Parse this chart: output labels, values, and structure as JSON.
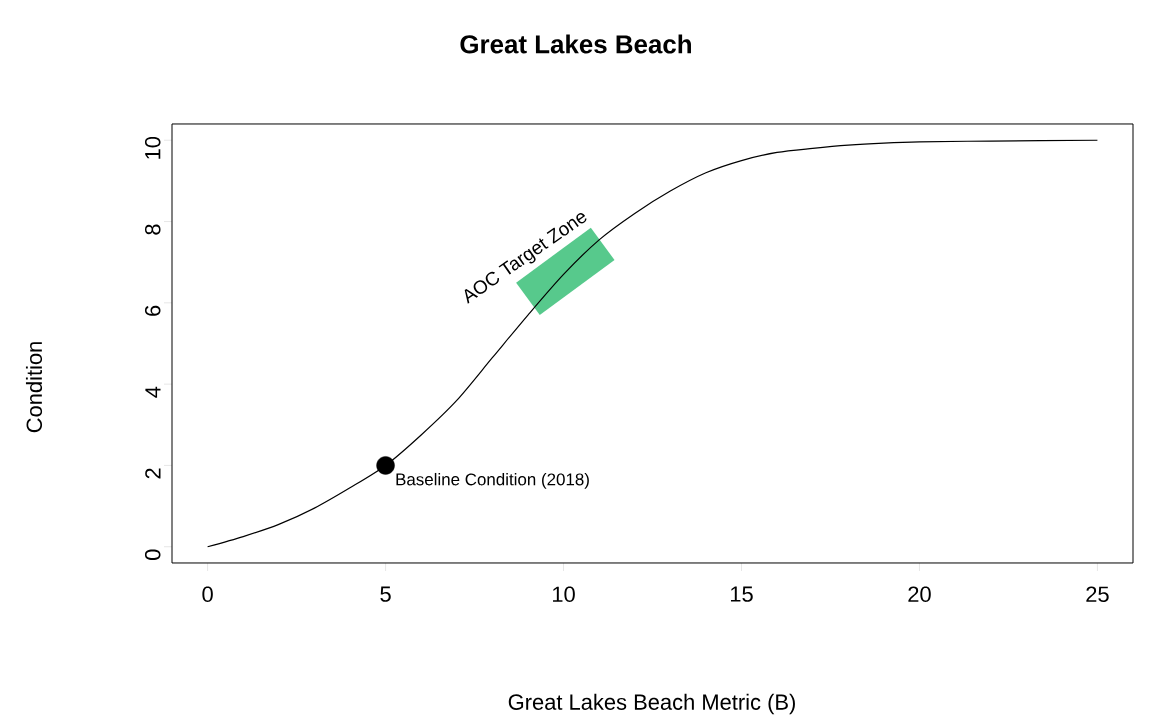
{
  "chart_data": {
    "type": "line",
    "title": "Great Lakes Beach",
    "xlabel": "Great Lakes Beach Metric (B)",
    "ylabel": "Condition",
    "xlim": [
      -1,
      26
    ],
    "ylim": [
      -0.4,
      10.4
    ],
    "xticks": [
      0,
      5,
      10,
      15,
      20,
      25
    ],
    "yticks": [
      0,
      2,
      4,
      6,
      8,
      10
    ],
    "grid": false,
    "series": [
      {
        "color": "#57c98c",
        "x": [
          9.0,
          11.1
        ],
        "values": [
          6.1,
          7.45
        ]
      },
      {
        "color": "#000000",
        "marker": "none",
        "x": [
          0,
          1,
          2,
          3,
          4,
          5,
          6,
          7,
          8,
          9,
          10,
          11,
          12,
          13,
          14,
          15,
          16,
          17,
          18,
          19,
          20,
          22,
          25
        ],
        "values": [
          0,
          0.25,
          0.55,
          0.95,
          1.45,
          2.0,
          2.75,
          3.6,
          4.65,
          5.7,
          6.7,
          7.55,
          8.2,
          8.75,
          9.2,
          9.5,
          9.7,
          9.8,
          9.88,
          9.93,
          9.96,
          9.98,
          10
        ]
      },
      {
        "type": "scatter",
        "color": "#000000",
        "marker": "circle",
        "x": [
          5
        ],
        "values": [
          2
        ]
      }
    ],
    "annotations": [
      {
        "text": "Baseline Condition (2018)",
        "x": 5,
        "y": 2
      },
      {
        "text": "AOC Target Zone",
        "x": 10,
        "y": 6.8
      }
    ]
  }
}
